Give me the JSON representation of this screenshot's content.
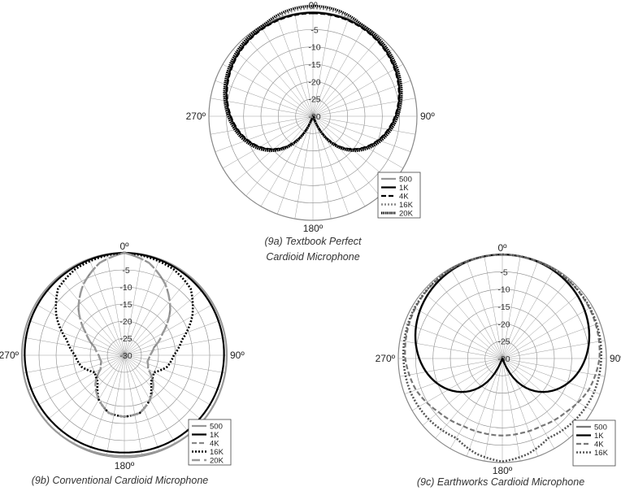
{
  "figure": {
    "captions": {
      "a_line1": "(9a) Textbook Perfect",
      "a_line2": "Cardioid Microphone",
      "b": "(9b) Conventional Cardioid Microphone",
      "c": "(9c) Earthworks Cardioid Microphone"
    }
  },
  "chart_data": [
    {
      "id": "9a",
      "type": "polar",
      "radial_ticks": [
        "-5",
        "-10",
        "-15",
        "-20",
        "-25",
        "-30"
      ],
      "angle_labels": {
        "top": "0º",
        "right": "90º",
        "bottom": "180º",
        "left": "270º"
      },
      "rlim": [
        -30,
        0
      ],
      "grid": true,
      "legend_position": "bottom-right",
      "series": [
        {
          "name": "500",
          "style": "solid",
          "color": "#999999",
          "model": "cardioid",
          "a": 0.5,
          "b": 0.5,
          "k": 1.0
        },
        {
          "name": "1K",
          "style": "solid",
          "color": "#000000",
          "model": "cardioid",
          "a": 0.5,
          "b": 0.5,
          "k": 0.985
        },
        {
          "name": "4K",
          "style": "dashed",
          "color": "#000000",
          "model": "cardioid",
          "a": 0.5,
          "b": 0.5,
          "k": 0.965
        },
        {
          "name": "16K",
          "style": "dotted",
          "color": "#888888",
          "model": "cardioid",
          "a": 0.5,
          "b": 0.5,
          "k": 1.04
        },
        {
          "name": "20K",
          "style": "dense-dotted",
          "color": "#000000",
          "model": "cardioid",
          "a": 0.5,
          "b": 0.5,
          "k": 1.06
        }
      ]
    },
    {
      "id": "9b",
      "type": "polar",
      "radial_ticks": [
        "-5",
        "-10",
        "-15",
        "-20",
        "-25",
        "-30"
      ],
      "angle_labels": {
        "top": "0º",
        "right": "90º",
        "bottom": "180º",
        "left": "270º"
      },
      "rlim": [
        -30,
        0
      ],
      "grid": true,
      "legend_position": "bottom-right",
      "series": [
        {
          "name": "500",
          "style": "solid",
          "color": "#999999",
          "model": "points",
          "points": [
            [
              0,
              0
            ],
            [
              45,
              0
            ],
            [
              90,
              0
            ],
            [
              135,
              0
            ],
            [
              180,
              -0.5
            ],
            [
              225,
              0
            ],
            [
              270,
              0
            ],
            [
              315,
              0
            ],
            [
              360,
              0
            ]
          ]
        },
        {
          "name": "1K",
          "style": "solid",
          "color": "#000000",
          "model": "points",
          "points": [
            [
              0,
              0
            ],
            [
              45,
              -0.5
            ],
            [
              90,
              -0.8
            ],
            [
              135,
              -1.2
            ],
            [
              180,
              -1.5
            ],
            [
              225,
              -1.2
            ],
            [
              270,
              -0.8
            ],
            [
              315,
              -0.5
            ],
            [
              360,
              0
            ]
          ]
        },
        {
          "name": "4K",
          "style": "dashed",
          "color": "#888888",
          "model": "points",
          "points": [
            [
              0,
              0
            ],
            [
              15,
              -2
            ],
            [
              30,
              -6
            ],
            [
              45,
              -11
            ],
            [
              60,
              -17
            ],
            [
              75,
              -21
            ],
            [
              90,
              -22.5
            ],
            [
              105,
              -23
            ],
            [
              120,
              -22
            ],
            [
              135,
              -18
            ],
            [
              150,
              -15
            ],
            [
              165,
              -12.5
            ],
            [
              180,
              -12
            ],
            [
              195,
              -12.5
            ],
            [
              210,
              -15
            ],
            [
              225,
              -18
            ],
            [
              240,
              -22
            ],
            [
              255,
              -23
            ],
            [
              270,
              -22.5
            ],
            [
              285,
              -21
            ],
            [
              300,
              -17
            ],
            [
              315,
              -11
            ],
            [
              330,
              -6
            ],
            [
              345,
              -2
            ],
            [
              360,
              0
            ]
          ]
        },
        {
          "name": "16K",
          "style": "dotted",
          "color": "#000000",
          "model": "points",
          "points": [
            [
              0,
              0
            ],
            [
              15,
              -0.5
            ],
            [
              30,
              -1
            ],
            [
              45,
              -2.5
            ],
            [
              60,
              -7
            ],
            [
              75,
              -12.5
            ],
            [
              90,
              -15.5
            ],
            [
              105,
              -17
            ],
            [
              120,
              -20
            ],
            [
              135,
              -19
            ],
            [
              150,
              -15
            ],
            [
              165,
              -12.5
            ],
            [
              180,
              -12
            ],
            [
              195,
              -12.5
            ],
            [
              210,
              -15
            ],
            [
              225,
              -19
            ],
            [
              240,
              -20
            ],
            [
              255,
              -17
            ],
            [
              270,
              -15.5
            ],
            [
              285,
              -12.5
            ],
            [
              300,
              -7
            ],
            [
              315,
              -2.5
            ],
            [
              330,
              -1
            ],
            [
              345,
              -0.5
            ],
            [
              360,
              0
            ]
          ]
        },
        {
          "name": "20K",
          "style": "long-dashed",
          "color": "#999999",
          "model": "points",
          "points": [
            [
              0,
              0
            ],
            [
              15,
              -2
            ],
            [
              30,
              -6
            ],
            [
              45,
              -11
            ],
            [
              60,
              -17
            ],
            [
              75,
              -21
            ],
            [
              90,
              -22.5
            ],
            [
              105,
              -23
            ],
            [
              120,
              -22
            ],
            [
              135,
              -18
            ],
            [
              150,
              -15
            ],
            [
              165,
              -12.5
            ],
            [
              180,
              -12
            ],
            [
              195,
              -12.5
            ],
            [
              210,
              -15
            ],
            [
              225,
              -18
            ],
            [
              240,
              -22
            ],
            [
              255,
              -23
            ],
            [
              270,
              -22.5
            ],
            [
              285,
              -21
            ],
            [
              300,
              -17
            ],
            [
              315,
              -11
            ],
            [
              330,
              -6
            ],
            [
              345,
              -2
            ],
            [
              360,
              0
            ]
          ]
        }
      ]
    },
    {
      "id": "9c",
      "type": "polar",
      "radial_ticks": [
        "-5",
        "-10",
        "-15",
        "-20",
        "-25",
        "-30"
      ],
      "angle_labels": {
        "top": "0º",
        "right": "90º",
        "bottom": "180º",
        "left": "270º"
      },
      "rlim": [
        -30,
        0
      ],
      "grid": true,
      "legend_position": "bottom-right",
      "series": [
        {
          "name": "500",
          "style": "solid",
          "color": "#777777",
          "model": "cardioid",
          "a": 0.5,
          "b": 0.5,
          "k": 0.99
        },
        {
          "name": "1K",
          "style": "solid",
          "color": "#000000",
          "model": "cardioid",
          "a": 0.5,
          "b": 0.5,
          "k": 1.0
        },
        {
          "name": "4K",
          "style": "dashed",
          "color": "#777777",
          "model": "points",
          "points": [
            [
              0,
              0
            ],
            [
              30,
              -0.3
            ],
            [
              60,
              -1
            ],
            [
              90,
              -2
            ],
            [
              110,
              -3.5
            ],
            [
              130,
              -6
            ],
            [
              150,
              -7.5
            ],
            [
              165,
              -7.8
            ],
            [
              180,
              -7.8
            ],
            [
              195,
              -7.8
            ],
            [
              210,
              -7.5
            ],
            [
              230,
              -6
            ],
            [
              250,
              -3.5
            ],
            [
              270,
              -2
            ],
            [
              300,
              -1
            ],
            [
              330,
              -0.3
            ],
            [
              360,
              0
            ]
          ]
        },
        {
          "name": "16K",
          "style": "dotted",
          "color": "#555555",
          "model": "points",
          "points": [
            [
              0,
              0
            ],
            [
              30,
              -0.3
            ],
            [
              60,
              -0.8
            ],
            [
              90,
              -1.5
            ],
            [
              110,
              -1.8
            ],
            [
              130,
              -2.5
            ],
            [
              150,
              -3.5
            ],
            [
              165,
              -1.5
            ],
            [
              180,
              -0.3
            ],
            [
              195,
              -1.5
            ],
            [
              210,
              -3.5
            ],
            [
              230,
              -2.5
            ],
            [
              250,
              -1.8
            ],
            [
              270,
              -1.5
            ],
            [
              300,
              -0.8
            ],
            [
              330,
              -0.3
            ],
            [
              360,
              0
            ]
          ]
        }
      ]
    }
  ]
}
